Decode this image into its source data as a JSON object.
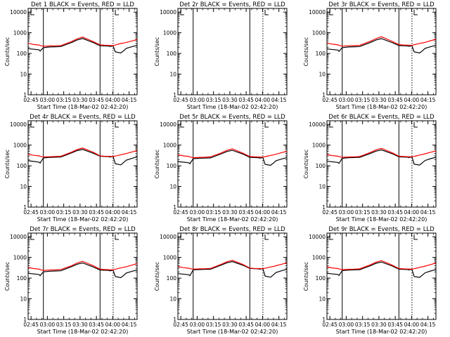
{
  "figure": {
    "xlabel": "Start Time (18-Mar-02 02:42:20)",
    "ylabel": "Counts/sec",
    "x_ticks": [
      "02:45",
      "03:00",
      "03:15",
      "03:30",
      "03:45",
      "04:00",
      "04:15"
    ],
    "y_ticks": [
      "1",
      "10",
      "100",
      "1000",
      "10000"
    ],
    "colors": {
      "events": "#000000",
      "lld": "#ff0000",
      "background": "#ffffff"
    }
  },
  "chart_data": [
    {
      "type": "line",
      "title": "Det 1  BLACK = Events, RED = LLD",
      "detector": "1",
      "has_data": true,
      "x_unit": "minutes after 02:42:20",
      "xlim": [
        0,
        100
      ],
      "ylim": [
        1,
        15000
      ],
      "yscale": "log",
      "series": [
        {
          "name": "Events",
          "color": "#000000",
          "x": [
            0,
            10,
            11,
            14,
            20,
            25,
            30,
            40,
            45,
            50,
            60,
            66,
            70,
            74,
            75,
            78,
            80,
            85,
            88,
            90,
            95,
            100
          ],
          "values": [
            170,
            150,
            130,
            190,
            205,
            210,
            215,
            340,
            450,
            530,
            330,
            235,
            230,
            225,
            215,
            230,
            120,
            105,
            140,
            175,
            210,
            250
          ]
        },
        {
          "name": "LLD",
          "color": "#ff0000",
          "x": [
            0,
            5,
            10,
            12,
            14,
            20,
            25,
            30,
            40,
            45,
            50,
            60,
            66,
            70,
            74,
            78,
            82,
            85,
            88,
            90,
            95,
            100
          ],
          "values": [
            310,
            270,
            255,
            235,
            220,
            230,
            235,
            240,
            380,
            510,
            620,
            370,
            260,
            250,
            245,
            240,
            275,
            300,
            320,
            340,
            400,
            470
          ]
        }
      ],
      "vlines": [
        {
          "x": 14,
          "style": "solid"
        },
        {
          "x": 66,
          "style": "solid"
        },
        {
          "x": 78,
          "style": "dotted"
        }
      ],
      "markers": [
        "L"
      ]
    },
    {
      "type": "line",
      "title": "Det 2r  BLACK = Events, RED = LLD",
      "detector": "2r",
      "has_data": false,
      "x_unit": "minutes after 02:42:20",
      "xlim": [
        0,
        100
      ],
      "ylim": [
        1,
        15000
      ],
      "yscale": "log",
      "series": [],
      "vlines": [
        {
          "x": 14,
          "style": "solid"
        },
        {
          "x": 66,
          "style": "solid"
        },
        {
          "x": 78,
          "style": "dotted"
        }
      ],
      "markers": [
        "L"
      ]
    },
    {
      "type": "line",
      "title": "Det 3r  BLACK = Events, RED = LLD",
      "detector": "3r",
      "has_data": true,
      "x_unit": "minutes after 02:42:20",
      "xlim": [
        0,
        100
      ],
      "ylim": [
        1,
        15000
      ],
      "yscale": "log",
      "series": [
        {
          "name": "Events",
          "color": "#000000",
          "x": [
            0,
            10,
            11,
            14,
            20,
            25,
            30,
            40,
            45,
            50,
            60,
            66,
            70,
            74,
            75,
            78,
            80,
            85,
            88,
            90,
            95,
            100
          ],
          "values": [
            165,
            145,
            125,
            190,
            205,
            210,
            215,
            340,
            450,
            520,
            330,
            240,
            235,
            230,
            220,
            235,
            120,
            105,
            140,
            175,
            210,
            250
          ]
        },
        {
          "name": "LLD",
          "color": "#ff0000",
          "x": [
            0,
            5,
            10,
            12,
            14,
            20,
            25,
            30,
            40,
            45,
            50,
            60,
            66,
            70,
            74,
            78,
            82,
            85,
            88,
            90,
            95,
            100
          ],
          "values": [
            320,
            280,
            260,
            240,
            225,
            235,
            240,
            245,
            390,
            520,
            640,
            380,
            265,
            255,
            250,
            245,
            280,
            305,
            325,
            345,
            410,
            480
          ]
        }
      ],
      "vlines": [
        {
          "x": 14,
          "style": "solid"
        },
        {
          "x": 66,
          "style": "solid"
        },
        {
          "x": 78,
          "style": "dotted"
        }
      ],
      "markers": [
        "L"
      ]
    },
    {
      "type": "line",
      "title": "Det 4r  BLACK = Events, RED = LLD",
      "detector": "4r",
      "has_data": true,
      "x_unit": "minutes after 02:42:20",
      "xlim": [
        0,
        100
      ],
      "ylim": [
        1,
        15000
      ],
      "yscale": "log",
      "series": [
        {
          "name": "Events",
          "color": "#000000",
          "x": [
            0,
            10,
            11,
            14,
            20,
            25,
            30,
            40,
            45,
            50,
            60,
            66,
            70,
            74,
            75,
            78,
            80,
            85,
            88,
            90,
            95,
            100
          ],
          "values": [
            175,
            150,
            135,
            240,
            255,
            260,
            265,
            420,
            540,
            620,
            400,
            290,
            280,
            275,
            265,
            280,
            125,
            110,
            150,
            185,
            225,
            270
          ]
        },
        {
          "name": "LLD",
          "color": "#ff0000",
          "x": [
            0,
            5,
            10,
            12,
            14,
            20,
            25,
            30,
            40,
            45,
            50,
            60,
            66,
            70,
            74,
            78,
            82,
            85,
            88,
            90,
            95,
            100
          ],
          "values": [
            360,
            320,
            300,
            280,
            265,
            275,
            280,
            290,
            460,
            610,
            720,
            440,
            300,
            290,
            285,
            280,
            310,
            340,
            365,
            390,
            460,
            540
          ]
        }
      ],
      "vlines": [
        {
          "x": 14,
          "style": "solid"
        },
        {
          "x": 66,
          "style": "solid"
        },
        {
          "x": 78,
          "style": "dotted"
        }
      ],
      "markers": [
        "L"
      ]
    },
    {
      "type": "line",
      "title": "Det 5r  BLACK = Events, RED = LLD",
      "detector": "5r",
      "has_data": true,
      "x_unit": "minutes after 02:42:20",
      "xlim": [
        0,
        100
      ],
      "ylim": [
        1,
        15000
      ],
      "yscale": "log",
      "series": [
        {
          "name": "Events",
          "color": "#000000",
          "x": [
            0,
            10,
            11,
            14,
            20,
            25,
            30,
            40,
            45,
            50,
            60,
            66,
            70,
            74,
            75,
            78,
            80,
            85,
            88,
            90,
            95,
            100
          ],
          "values": [
            160,
            140,
            125,
            220,
            230,
            235,
            240,
            380,
            490,
            560,
            360,
            255,
            250,
            245,
            235,
            250,
            118,
            105,
            140,
            175,
            210,
            250
          ]
        },
        {
          "name": "LLD",
          "color": "#ff0000",
          "x": [
            0,
            5,
            10,
            12,
            14,
            20,
            25,
            30,
            40,
            45,
            50,
            60,
            66,
            70,
            74,
            78,
            82,
            85,
            88,
            90,
            95,
            100
          ],
          "values": [
            340,
            300,
            280,
            260,
            245,
            255,
            260,
            270,
            420,
            560,
            660,
            400,
            280,
            270,
            265,
            260,
            290,
            315,
            340,
            360,
            430,
            500
          ]
        }
      ],
      "vlines": [
        {
          "x": 14,
          "style": "solid"
        },
        {
          "x": 66,
          "style": "solid"
        },
        {
          "x": 78,
          "style": "dotted"
        }
      ],
      "markers": [
        "L"
      ]
    },
    {
      "type": "line",
      "title": "Det 6r  BLACK = Events, RED = LLD",
      "detector": "6r",
      "has_data": true,
      "x_unit": "minutes after 02:42:20",
      "xlim": [
        0,
        100
      ],
      "ylim": [
        1,
        15000
      ],
      "yscale": "log",
      "series": [
        {
          "name": "Events",
          "color": "#000000",
          "x": [
            0,
            10,
            11,
            14,
            20,
            25,
            30,
            40,
            45,
            50,
            60,
            66,
            70,
            74,
            75,
            78,
            80,
            85,
            88,
            90,
            95,
            100
          ],
          "values": [
            165,
            145,
            130,
            230,
            245,
            250,
            255,
            400,
            510,
            590,
            380,
            270,
            265,
            260,
            250,
            265,
            120,
            108,
            145,
            180,
            220,
            260
          ]
        },
        {
          "name": "LLD",
          "color": "#ff0000",
          "x": [
            0,
            5,
            10,
            12,
            14,
            20,
            25,
            30,
            40,
            45,
            50,
            60,
            66,
            70,
            74,
            78,
            82,
            85,
            88,
            90,
            95,
            100
          ],
          "values": [
            350,
            310,
            290,
            270,
            255,
            265,
            270,
            280,
            440,
            590,
            700,
            420,
            290,
            280,
            275,
            270,
            300,
            330,
            355,
            380,
            450,
            520
          ]
        }
      ],
      "vlines": [
        {
          "x": 14,
          "style": "solid"
        },
        {
          "x": 66,
          "style": "solid"
        },
        {
          "x": 78,
          "style": "dotted"
        }
      ],
      "markers": [
        "L"
      ]
    },
    {
      "type": "line",
      "title": "Det 7r  BLACK = Events, RED = LLD",
      "detector": "7r",
      "has_data": true,
      "x_unit": "minutes after 02:42:20",
      "xlim": [
        0,
        100
      ],
      "ylim": [
        1,
        15000
      ],
      "yscale": "log",
      "series": [
        {
          "name": "Events",
          "color": "#000000",
          "x": [
            0,
            10,
            11,
            14,
            20,
            25,
            30,
            40,
            45,
            50,
            60,
            66,
            70,
            74,
            75,
            78,
            80,
            85,
            88,
            90,
            95,
            100
          ],
          "values": [
            170,
            150,
            130,
            200,
            215,
            220,
            225,
            360,
            470,
            540,
            340,
            245,
            240,
            235,
            225,
            240,
            120,
            105,
            140,
            175,
            210,
            250
          ]
        },
        {
          "name": "LLD",
          "color": "#ff0000",
          "x": [
            0,
            5,
            10,
            12,
            14,
            20,
            25,
            30,
            40,
            45,
            50,
            60,
            66,
            70,
            74,
            78,
            82,
            85,
            88,
            90,
            95,
            100
          ],
          "values": [
            330,
            290,
            270,
            250,
            235,
            245,
            250,
            260,
            400,
            540,
            650,
            390,
            270,
            260,
            255,
            250,
            285,
            310,
            335,
            355,
            420,
            500
          ]
        }
      ],
      "vlines": [
        {
          "x": 14,
          "style": "solid"
        },
        {
          "x": 66,
          "style": "solid"
        },
        {
          "x": 78,
          "style": "dotted"
        }
      ],
      "markers": [
        "L"
      ]
    },
    {
      "type": "line",
      "title": "Det 8r  BLACK = Events, RED = LLD",
      "detector": "8r",
      "has_data": true,
      "x_unit": "minutes after 02:42:20",
      "xlim": [
        0,
        100
      ],
      "ylim": [
        1,
        15000
      ],
      "yscale": "log",
      "series": [
        {
          "name": "Events",
          "color": "#000000",
          "x": [
            0,
            10,
            11,
            14,
            20,
            25,
            30,
            40,
            45,
            50,
            60,
            66,
            70,
            74,
            75,
            78,
            80,
            85,
            88,
            90,
            95,
            100
          ],
          "values": [
            165,
            145,
            130,
            250,
            260,
            265,
            270,
            430,
            550,
            630,
            410,
            295,
            285,
            280,
            270,
            285,
            125,
            110,
            150,
            185,
            225,
            270
          ]
        },
        {
          "name": "LLD",
          "color": "#ff0000",
          "x": [
            0,
            5,
            10,
            12,
            14,
            20,
            25,
            30,
            40,
            45,
            50,
            60,
            66,
            70,
            74,
            78,
            82,
            85,
            88,
            90,
            95,
            100
          ],
          "values": [
            360,
            320,
            300,
            280,
            270,
            280,
            285,
            295,
            470,
            620,
            730,
            450,
            305,
            295,
            290,
            285,
            315,
            345,
            370,
            395,
            465,
            550
          ]
        }
      ],
      "vlines": [
        {
          "x": 14,
          "style": "solid"
        },
        {
          "x": 66,
          "style": "solid"
        },
        {
          "x": 78,
          "style": "dotted"
        }
      ],
      "markers": [
        "L"
      ]
    },
    {
      "type": "line",
      "title": "Det 9r  BLACK = Events, RED = LLD",
      "detector": "9r",
      "has_data": true,
      "x_unit": "minutes after 02:42:20",
      "xlim": [
        0,
        100
      ],
      "ylim": [
        1,
        15000
      ],
      "yscale": "log",
      "series": [
        {
          "name": "Events",
          "color": "#000000",
          "x": [
            0,
            10,
            11,
            14,
            20,
            25,
            30,
            40,
            45,
            50,
            60,
            66,
            70,
            74,
            75,
            78,
            80,
            85,
            88,
            90,
            95,
            100
          ],
          "values": [
            170,
            150,
            135,
            230,
            245,
            250,
            255,
            400,
            520,
            600,
            380,
            270,
            265,
            260,
            250,
            265,
            120,
            108,
            145,
            180,
            220,
            260
          ]
        },
        {
          "name": "LLD",
          "color": "#ff0000",
          "x": [
            0,
            5,
            10,
            12,
            14,
            20,
            25,
            30,
            40,
            45,
            50,
            60,
            66,
            70,
            74,
            78,
            82,
            85,
            88,
            90,
            95,
            100
          ],
          "values": [
            350,
            310,
            290,
            270,
            255,
            265,
            270,
            280,
            440,
            590,
            700,
            420,
            290,
            280,
            275,
            270,
            300,
            330,
            355,
            380,
            450,
            540
          ]
        }
      ],
      "vlines": [
        {
          "x": 14,
          "style": "solid"
        },
        {
          "x": 66,
          "style": "solid"
        },
        {
          "x": 78,
          "style": "dotted"
        }
      ],
      "markers": [
        "L"
      ]
    }
  ]
}
